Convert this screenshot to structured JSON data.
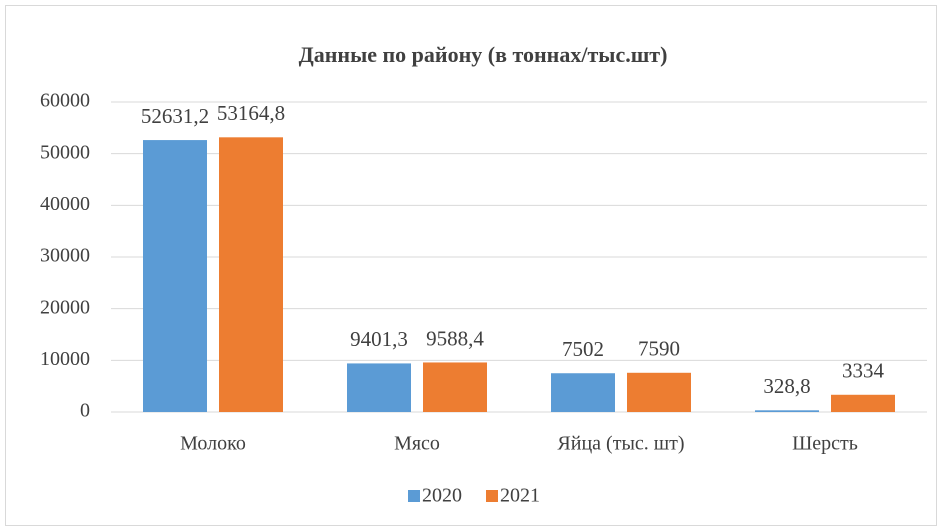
{
  "chart_data": {
    "type": "bar",
    "title": "Данные по району (в тоннах/тыс.шт)",
    "categories": [
      "Молоко",
      "Мясо",
      "Яйца (тыс. шт)",
      "Шерсть"
    ],
    "series": [
      {
        "name": "2020",
        "color": "#5b9bd5",
        "values": [
          52631.2,
          9401.3,
          7502,
          328.8
        ],
        "value_labels": [
          "52631,2",
          "9401,3",
          "7502",
          "328,8"
        ]
      },
      {
        "name": "2021",
        "color": "#ed7d31",
        "values": [
          53164.8,
          9588.4,
          7590,
          3334
        ],
        "value_labels": [
          "53164,8",
          "9588,4",
          "7590",
          "3334"
        ]
      }
    ],
    "ylim": [
      0,
      60000
    ],
    "yticks": [
      0,
      10000,
      20000,
      30000,
      40000,
      50000,
      60000
    ],
    "grid": true,
    "legend": "bottom"
  }
}
